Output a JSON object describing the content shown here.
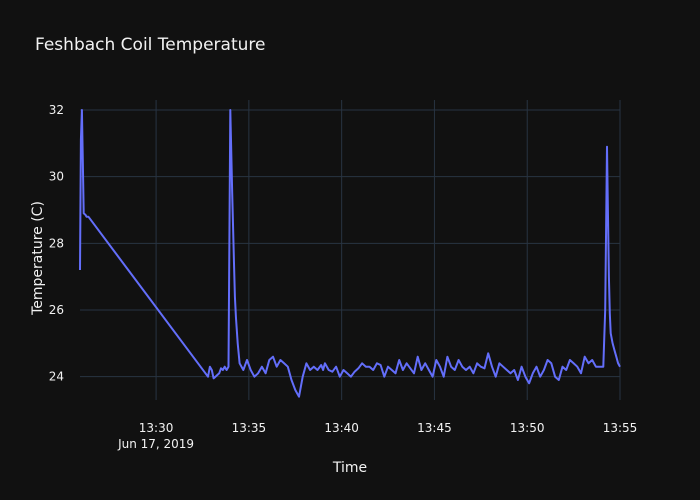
{
  "chart_data": {
    "type": "line",
    "title": "Feshbach Coil Temperature",
    "xlabel": "Time",
    "ylabel": "Temperature (C)",
    "x_ticks": [
      {
        "t": 30,
        "label": "13:30",
        "sub": "Jun 17, 2019"
      },
      {
        "t": 35,
        "label": "13:35",
        "sub": ""
      },
      {
        "t": 40,
        "label": "13:40",
        "sub": ""
      },
      {
        "t": 45,
        "label": "13:45",
        "sub": ""
      },
      {
        "t": 50,
        "label": "13:50",
        "sub": ""
      },
      {
        "t": 55,
        "label": "13:55",
        "sub": ""
      }
    ],
    "y_ticks": [
      24,
      26,
      28,
      30,
      32
    ],
    "xlim": [
      "13:25.9",
      "13:55.0"
    ],
    "ylim": [
      23.3,
      32.3
    ],
    "grid": true,
    "line_color": "#636efa",
    "series": [
      {
        "time_min": [
          25.9,
          25.95,
          26.0,
          26.05,
          26.1,
          26.2,
          26.25,
          26.35,
          32.8,
          32.9,
          33.0,
          33.1,
          33.2,
          33.3,
          33.4,
          33.5,
          33.6,
          33.7,
          33.8,
          33.9,
          34.0,
          34.1,
          34.2,
          34.25,
          34.3,
          34.4,
          34.5,
          34.7,
          34.9,
          35.1,
          35.3,
          35.5,
          35.7,
          35.9,
          36.1,
          36.3,
          36.5,
          36.7,
          36.9,
          37.1,
          37.3,
          37.5,
          37.7,
          37.9,
          38.1,
          38.3,
          38.5,
          38.7,
          38.9,
          39.0,
          39.1,
          39.3,
          39.5,
          39.7,
          39.9,
          40.1,
          40.3,
          40.5,
          40.7,
          40.9,
          41.1,
          41.3,
          41.5,
          41.7,
          41.9,
          42.1,
          42.3,
          42.5,
          42.7,
          42.9,
          43.1,
          43.3,
          43.5,
          43.7,
          43.9,
          44.1,
          44.3,
          44.5,
          44.7,
          44.9,
          45.1,
          45.3,
          45.5,
          45.7,
          45.9,
          46.1,
          46.3,
          46.5,
          46.7,
          46.9,
          47.1,
          47.3,
          47.5,
          47.7,
          47.9,
          48.1,
          48.3,
          48.5,
          48.7,
          48.9,
          49.1,
          49.3,
          49.5,
          49.7,
          49.9,
          50.1,
          50.3,
          50.5,
          50.7,
          50.9,
          51.1,
          51.3,
          51.5,
          51.7,
          51.9,
          52.1,
          52.3,
          52.5,
          52.7,
          52.9,
          53.1,
          53.3,
          53.5,
          53.7,
          53.9,
          54.1,
          54.2,
          54.3,
          54.35,
          54.4,
          54.45,
          54.5,
          54.6,
          54.7,
          54.8,
          54.9,
          55.0
        ],
        "temp_c": [
          27.2,
          31.1,
          32.0,
          30.5,
          28.9,
          28.85,
          28.8,
          28.8,
          24.0,
          24.3,
          24.2,
          23.95,
          24.0,
          24.05,
          24.1,
          24.25,
          24.2,
          24.3,
          24.2,
          24.3,
          32.0,
          29.5,
          27.4,
          26.4,
          25.8,
          25.0,
          24.4,
          24.2,
          24.5,
          24.2,
          24.0,
          24.1,
          24.3,
          24.1,
          24.5,
          24.6,
          24.3,
          24.5,
          24.4,
          24.3,
          23.9,
          23.6,
          23.4,
          24.0,
          24.4,
          24.2,
          24.3,
          24.2,
          24.35,
          24.2,
          24.4,
          24.2,
          24.15,
          24.3,
          24.0,
          24.2,
          24.1,
          24.0,
          24.15,
          24.25,
          24.4,
          24.3,
          24.3,
          24.2,
          24.4,
          24.35,
          24.0,
          24.3,
          24.2,
          24.1,
          24.5,
          24.2,
          24.4,
          24.25,
          24.1,
          24.6,
          24.2,
          24.4,
          24.2,
          24.0,
          24.5,
          24.3,
          24.0,
          24.6,
          24.3,
          24.2,
          24.5,
          24.3,
          24.2,
          24.3,
          24.1,
          24.4,
          24.3,
          24.25,
          24.7,
          24.3,
          24.0,
          24.4,
          24.3,
          24.2,
          24.1,
          24.2,
          23.9,
          24.3,
          24.0,
          23.8,
          24.1,
          24.3,
          24.0,
          24.2,
          24.5,
          24.4,
          24.0,
          23.9,
          24.3,
          24.2,
          24.5,
          24.4,
          24.3,
          24.1,
          24.6,
          24.4,
          24.5,
          24.3,
          24.3,
          24.3,
          26.0,
          30.9,
          29.0,
          27.0,
          25.9,
          25.3,
          25.0,
          24.8,
          24.6,
          24.4,
          24.3
        ]
      }
    ]
  }
}
